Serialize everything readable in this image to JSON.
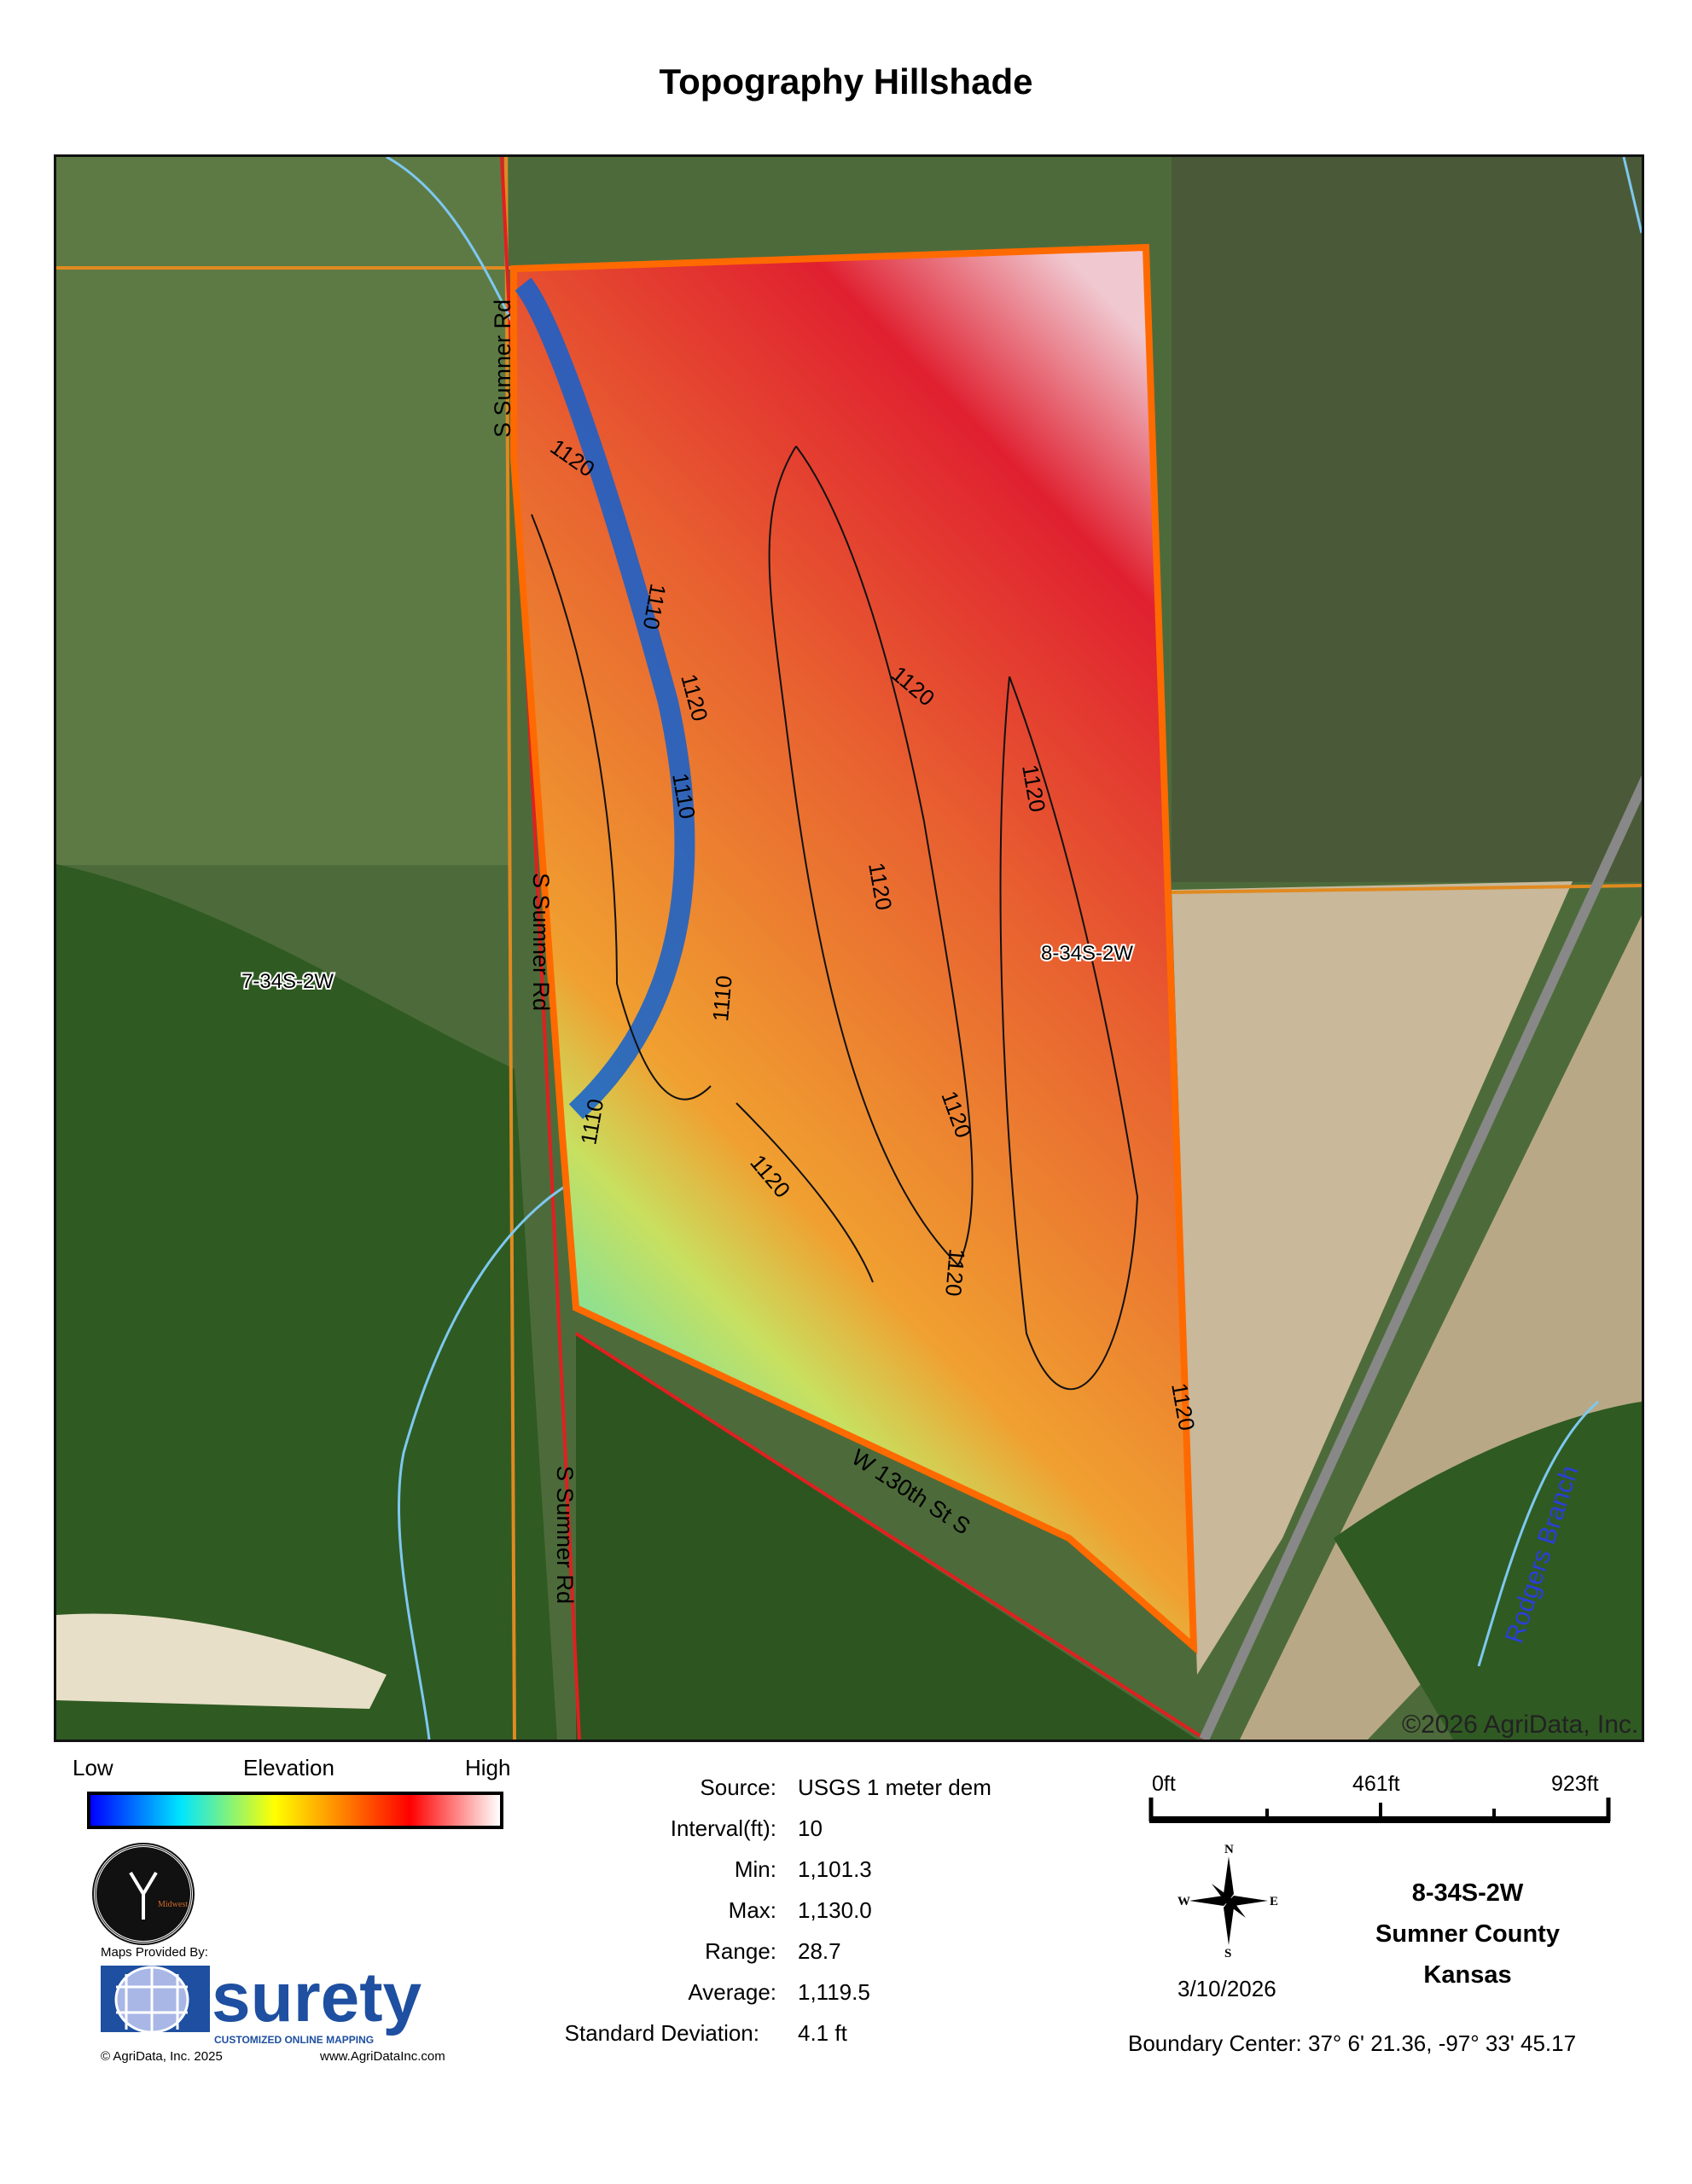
{
  "title": "Topography Hillshade",
  "map": {
    "copyright": "©2026 AgriData, Inc.",
    "labels": {
      "road_sumner_1": "S Sumner Rd",
      "road_sumner_2": "S Sumner Rd",
      "road_sumner_3": "S Sumner Rd",
      "road_130th": "W 130th St S",
      "section_west": "7-34S-2W",
      "section_east": "8-34S-2W",
      "creek": "Rodgers Branch"
    },
    "contours": [
      "1120",
      "1110",
      "1120",
      "1110",
      "1110",
      "1110",
      "1120",
      "1120",
      "1120",
      "1120",
      "1120",
      "1120",
      "1120"
    ],
    "colors": {
      "boundary": "#ff6a00",
      "road": "#e02020",
      "stream": "#7ec8f0",
      "section_line": "#e08a20"
    }
  },
  "legend": {
    "low": "Low",
    "title": "Elevation",
    "high": "High",
    "gradient": [
      "#0000ff",
      "#00e5ff",
      "#ffff00",
      "#ff8000",
      "#ff0000",
      "#ffffff"
    ]
  },
  "stats": [
    {
      "key": "Source:",
      "value": "USGS 1 meter dem"
    },
    {
      "key": "Interval(ft):",
      "value": "10"
    },
    {
      "key": "Min:",
      "value": "1,101.3"
    },
    {
      "key": "Max:",
      "value": "1,130.0"
    },
    {
      "key": "Range:",
      "value": "28.7"
    },
    {
      "key": "Average:",
      "value": "1,119.5"
    },
    {
      "key": "Standard Deviation:",
      "value": "4.1 ft"
    }
  ],
  "scale": {
    "ticks": [
      "0ft",
      "461ft",
      "923ft"
    ]
  },
  "compass": {
    "n": "N",
    "s": "S",
    "e": "E",
    "w": "W"
  },
  "date": "3/10/2026",
  "location": {
    "section": "8-34S-2W",
    "county": "Sumner County",
    "state": "Kansas"
  },
  "boundary_center": "Boundary Center: 37° 6' 21.36,  -97° 33' 45.17",
  "branding": {
    "provided_by": "Maps Provided By:",
    "logo": "surety",
    "tagline": "CUSTOMIZED ONLINE MAPPING",
    "copyright": "© AgriData, Inc. 2025",
    "url": "www.AgriDataInc.com",
    "seal": "Midwest"
  }
}
